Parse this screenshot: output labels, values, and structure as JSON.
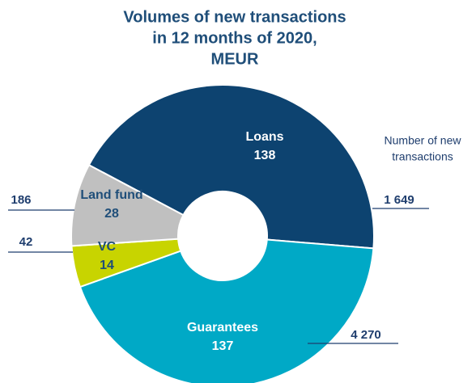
{
  "chart_data": {
    "type": "donut",
    "title": [
      "Volumes of new transactions",
      "in 12 months of 2020,",
      "MEUR"
    ],
    "categories": [
      "Loans",
      "Guarantees",
      "VC",
      "Land fund"
    ],
    "values": [
      138,
      137,
      14,
      28
    ],
    "colors": [
      "#0d4370",
      "#00a9c6",
      "#c8d400",
      "#c0c0c0"
    ],
    "counts": [
      1649,
      4270,
      42,
      186
    ],
    "count_labels": [
      "1 649",
      "4 270",
      "42",
      "186"
    ],
    "annotation": [
      "Number of new",
      "transactions"
    ]
  }
}
